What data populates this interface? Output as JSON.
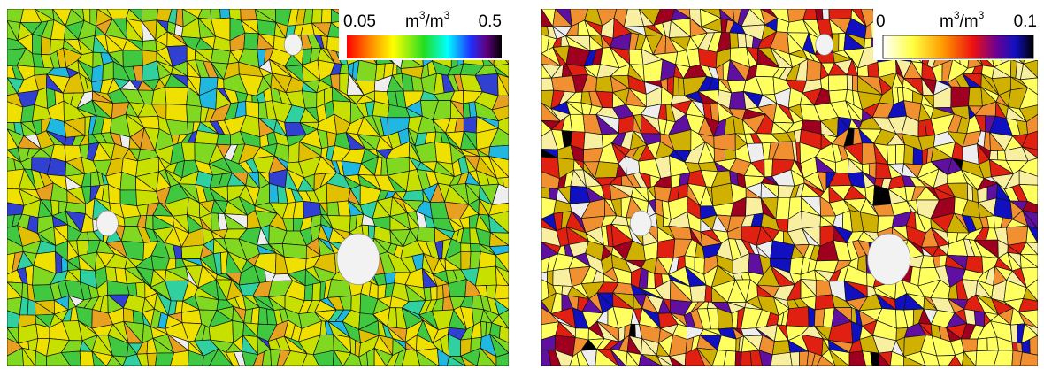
{
  "maps": [
    {
      "legend": {
        "min": "0.05",
        "max": "0.5",
        "unit": {
          "num": "m",
          "num_exp": "3",
          "den": "/m",
          "den_exp": "3"
        }
      }
    },
    {
      "legend": {
        "min": "0",
        "max": "0.1",
        "unit": {
          "num": "m",
          "num_exp": "3",
          "den": "/m",
          "den_exp": "3"
        }
      }
    }
  ]
}
